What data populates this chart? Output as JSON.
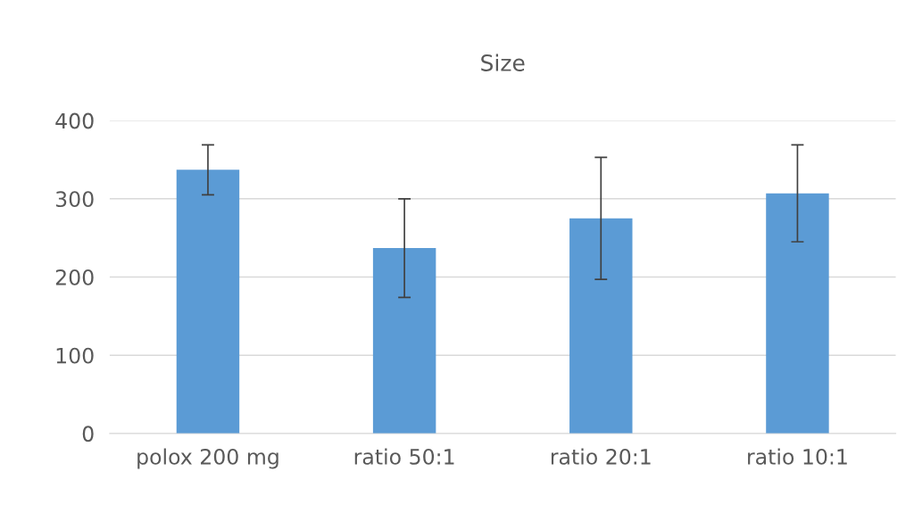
{
  "chart_data": {
    "type": "bar",
    "title": "Size",
    "categories": [
      "polox 200 mg",
      "ratio 50:1",
      "ratio 20:1",
      "ratio 10:1"
    ],
    "values": [
      337,
      237,
      275,
      307
    ],
    "errors": [
      32,
      63,
      78,
      62
    ],
    "color": "#5b9bd5",
    "ylim": [
      0,
      400
    ],
    "yticks": [
      0,
      100,
      200,
      300,
      400
    ],
    "grid": "y"
  }
}
